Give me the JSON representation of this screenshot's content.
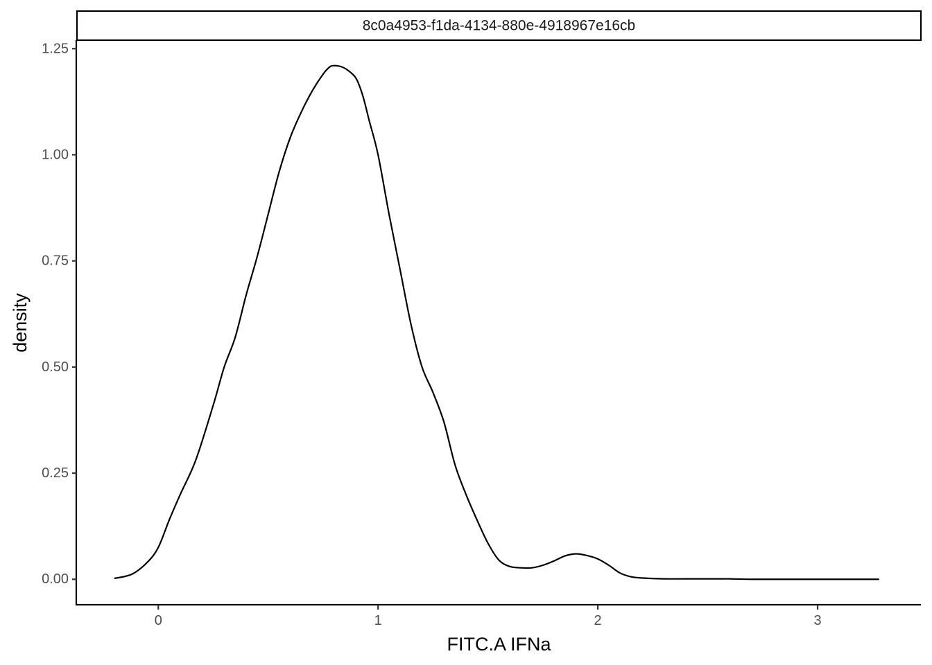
{
  "chart_data": {
    "type": "area",
    "facet_label": "8c0a4953-f1da-4134-880e-4918967e16cb",
    "xlabel": "FITC.A IFNa",
    "ylabel": "density",
    "xlim": [
      -0.37,
      3.47
    ],
    "ylim": [
      -0.06,
      1.27
    ],
    "x_ticks": [
      {
        "value": 0,
        "label": "0"
      },
      {
        "value": 1,
        "label": "1"
      },
      {
        "value": 2,
        "label": "2"
      },
      {
        "value": 3,
        "label": "3"
      }
    ],
    "y_ticks": [
      {
        "value": 0,
        "label": "0.00"
      },
      {
        "value": 0.25,
        "label": "0.25"
      },
      {
        "value": 0.5,
        "label": "0.50"
      },
      {
        "value": 0.75,
        "label": "0.75"
      },
      {
        "value": 1.0,
        "label": "1.00"
      },
      {
        "value": 1.25,
        "label": "1.25"
      }
    ],
    "grid": false,
    "series": [
      {
        "x": [
          -0.2,
          -0.12,
          -0.05,
          0.0,
          0.05,
          0.1,
          0.17,
          0.25,
          0.3,
          0.35,
          0.4,
          0.45,
          0.5,
          0.55,
          0.6,
          0.65,
          0.7,
          0.75,
          0.78,
          0.8,
          0.83,
          0.86,
          0.9,
          0.93,
          0.96,
          1.0,
          1.05,
          1.1,
          1.15,
          1.2,
          1.25,
          1.3,
          1.35,
          1.4,
          1.45,
          1.5,
          1.55,
          1.6,
          1.65,
          1.7,
          1.75,
          1.8,
          1.85,
          1.9,
          1.95,
          2.0,
          2.05,
          2.1,
          2.15,
          2.2,
          2.3,
          2.4,
          2.55,
          2.6,
          2.7,
          3.0,
          3.28
        ],
        "y": [
          0.002,
          0.012,
          0.04,
          0.075,
          0.14,
          0.2,
          0.28,
          0.41,
          0.5,
          0.57,
          0.67,
          0.76,
          0.86,
          0.96,
          1.04,
          1.1,
          1.15,
          1.19,
          1.207,
          1.21,
          1.208,
          1.2,
          1.18,
          1.14,
          1.08,
          1.0,
          0.86,
          0.73,
          0.6,
          0.5,
          0.44,
          0.37,
          0.27,
          0.2,
          0.14,
          0.085,
          0.045,
          0.03,
          0.027,
          0.027,
          0.033,
          0.043,
          0.055,
          0.06,
          0.056,
          0.048,
          0.033,
          0.015,
          0.006,
          0.003,
          0.001,
          0.001,
          0.001,
          0.001,
          0.0,
          0.0,
          0.0
        ]
      }
    ]
  }
}
